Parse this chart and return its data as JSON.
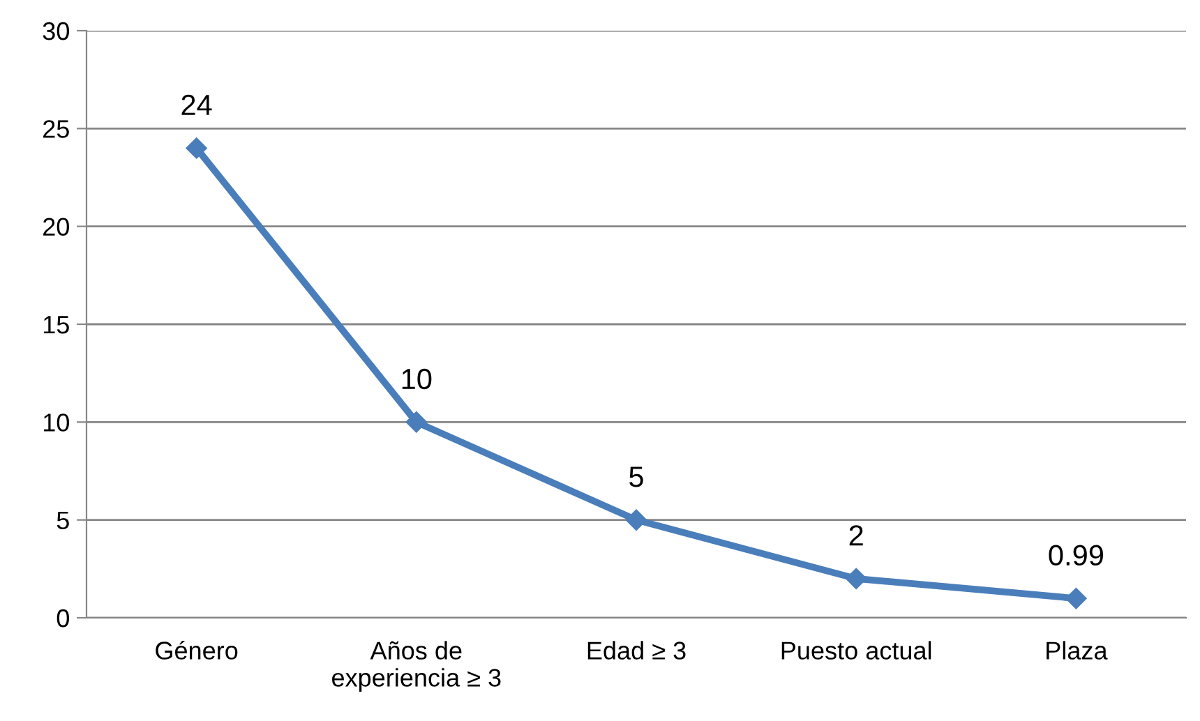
{
  "chart_data": {
    "type": "line",
    "categories": [
      "Género",
      "Años de\nexperiencia ≥ 3",
      "Edad ≥ 3",
      "Puesto actual",
      "Plaza"
    ],
    "series": [
      {
        "color": "#4a7ebb",
        "values": [
          24,
          10,
          5,
          2,
          0.99
        ]
      }
    ],
    "ylim": [
      0,
      30
    ],
    "yticks": [
      0,
      5,
      10,
      15,
      20,
      25,
      30
    ],
    "grid": "y",
    "marker": "diamond",
    "line_style": "solid",
    "data_labels": true,
    "legend": false
  }
}
